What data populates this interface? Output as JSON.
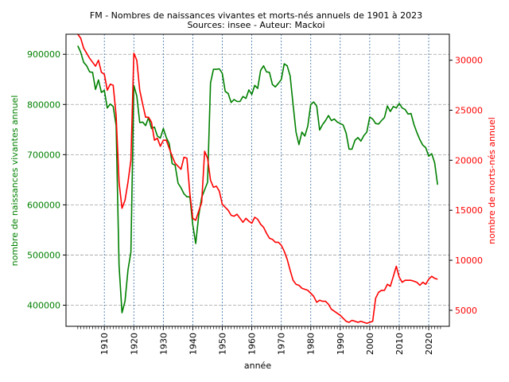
{
  "chart_data": {
    "type": "line",
    "title": "FM - Nombres de naissances vivantes et morts-nés annuels  de 1901 à 2023",
    "subtitle": "Sources: insee - Auteur: Mackoi",
    "xlabel": "année",
    "ylabel_left": "nombre de naissances vivantes annuel",
    "ylabel_right": "nombre de morts-nés annuel",
    "xlim": [
      1897,
      2027
    ],
    "ylim_left": [
      358000,
      940000
    ],
    "ylim_right": [
      3400,
      32600
    ],
    "x_ticks": [
      1910,
      1920,
      1930,
      1940,
      1950,
      1960,
      1970,
      1980,
      1990,
      2000,
      2010,
      2020
    ],
    "x_tick_labels": [
      "1910",
      "1920",
      "1930",
      "1940",
      "1950",
      "1960",
      "1970",
      "1980",
      "1990",
      "2000",
      "2010",
      "2020"
    ],
    "y_ticks_left": [
      400000,
      500000,
      600000,
      700000,
      800000,
      900000
    ],
    "y_tick_labels_left": [
      "400000",
      "500000",
      "600000",
      "700000",
      "800000",
      "900000"
    ],
    "y_ticks_right": [
      5000,
      10000,
      15000,
      20000,
      25000,
      30000
    ],
    "y_tick_labels_right": [
      "5000",
      "10000",
      "15000",
      "20000",
      "25000",
      "30000"
    ],
    "grid": {
      "horizontal": true,
      "vertical": true
    },
    "colors": {
      "left_series": "#008000",
      "right_series": "#ff0000",
      "hgrid": "#a0a0a0",
      "vgrid": "#3a6ea5",
      "left_axis_labels": "#008000",
      "right_axis_labels": "#ff0000"
    },
    "series": [
      {
        "axis": "left",
        "x": [
          1901,
          1902,
          1903,
          1904,
          1905,
          1906,
          1907,
          1908,
          1909,
          1910,
          1911,
          1912,
          1913,
          1914,
          1915,
          1916,
          1917,
          1918,
          1919,
          1920,
          1921,
          1922,
          1923,
          1924,
          1925,
          1926,
          1927,
          1928,
          1929,
          1930,
          1931,
          1932,
          1933,
          1934,
          1935,
          1936,
          1937,
          1938,
          1939,
          1940,
          1941,
          1942,
          1943,
          1944,
          1945,
          1946,
          1947,
          1948,
          1949,
          1950,
          1951,
          1952,
          1953,
          1954,
          1955,
          1956,
          1957,
          1958,
          1959,
          1960,
          1961,
          1962,
          1963,
          1964,
          1965,
          1966,
          1967,
          1968,
          1969,
          1970,
          1971,
          1972,
          1973,
          1974,
          1975,
          1976,
          1977,
          1978,
          1979,
          1980,
          1981,
          1982,
          1983,
          1984,
          1985,
          1986,
          1987,
          1988,
          1989,
          1990,
          1991,
          1992,
          1993,
          1994,
          1995,
          1996,
          1997,
          1998,
          1999,
          2000,
          2001,
          2002,
          2003,
          2004,
          2005,
          2006,
          2007,
          2008,
          2009,
          2010,
          2011,
          2012,
          2013,
          2014,
          2015,
          2016,
          2017,
          2018,
          2019,
          2020,
          2021,
          2022,
          2023
        ],
        "values": [
          917000,
          904000,
          884000,
          877000,
          865000,
          864000,
          830000,
          849000,
          824000,
          828000,
          793000,
          801000,
          796000,
          758000,
          479000,
          385000,
          408000,
          470000,
          506000,
          838000,
          817000,
          764000,
          765000,
          758000,
          774000,
          752000,
          755000,
          737000,
          733000,
          752000,
          734000,
          722000,
          682000,
          679000,
          643000,
          634000,
          622000,
          616000,
          616000,
          560000,
          523000,
          578000,
          615000,
          630000,
          645000,
          843000,
          870000,
          870000,
          871000,
          862000,
          826000,
          822000,
          804000,
          810000,
          806000,
          806000,
          816000,
          812000,
          829000,
          820000,
          838000,
          832000,
          868000,
          877000,
          865000,
          864000,
          840000,
          835000,
          842000,
          850000,
          881000,
          877000,
          857000,
          800000,
          745000,
          720000,
          745000,
          737000,
          757000,
          800000,
          805000,
          797000,
          749000,
          760000,
          768000,
          778000,
          768000,
          771000,
          765000,
          762000,
          759000,
          743000,
          711000,
          711000,
          729000,
          734000,
          727000,
          738000,
          745000,
          775000,
          771000,
          762000,
          761000,
          768000,
          774000,
          797000,
          786000,
          796000,
          793000,
          802000,
          793000,
          790000,
          781000,
          782000,
          760000,
          744000,
          730000,
          719000,
          714000,
          697000,
          702000,
          684000,
          640000
        ]
      },
      {
        "axis": "right",
        "x": [
          1901,
          1902,
          1903,
          1904,
          1905,
          1906,
          1907,
          1908,
          1909,
          1910,
          1911,
          1912,
          1913,
          1914,
          1915,
          1916,
          1917,
          1918,
          1919,
          1920,
          1921,
          1922,
          1923,
          1924,
          1925,
          1926,
          1927,
          1928,
          1929,
          1930,
          1931,
          1932,
          1933,
          1934,
          1935,
          1936,
          1937,
          1938,
          1939,
          1940,
          1941,
          1942,
          1943,
          1944,
          1945,
          1946,
          1947,
          1948,
          1949,
          1950,
          1951,
          1952,
          1953,
          1954,
          1955,
          1956,
          1957,
          1958,
          1959,
          1960,
          1961,
          1962,
          1963,
          1964,
          1965,
          1966,
          1967,
          1968,
          1969,
          1970,
          1971,
          1972,
          1973,
          1974,
          1975,
          1976,
          1977,
          1978,
          1979,
          1980,
          1981,
          1982,
          1983,
          1984,
          1985,
          1986,
          1987,
          1988,
          1989,
          1990,
          1991,
          1992,
          1993,
          1994,
          1995,
          1996,
          1997,
          1998,
          1999,
          2000,
          2001,
          2002,
          2003,
          2004,
          2005,
          2006,
          2007,
          2008,
          2009,
          2010,
          2011,
          2012,
          2013,
          2014,
          2015,
          2016,
          2017,
          2018,
          2019,
          2020,
          2021,
          2022,
          2023
        ],
        "values": [
          32600,
          32200,
          31200,
          30700,
          30200,
          29800,
          29400,
          30000,
          28800,
          28600,
          27000,
          27600,
          27500,
          24500,
          17800,
          15200,
          16000,
          17800,
          20000,
          30700,
          30000,
          27000,
          25600,
          24300,
          24300,
          23800,
          22000,
          22200,
          21400,
          22000,
          22000,
          21200,
          20400,
          19700,
          19400,
          19100,
          20300,
          20200,
          16700,
          14200,
          14000,
          14900,
          15800,
          20900,
          20200,
          18000,
          17300,
          17400,
          16900,
          15600,
          15300,
          15000,
          14500,
          14400,
          14600,
          14200,
          13800,
          14200,
          13900,
          13700,
          14300,
          14100,
          13600,
          13300,
          12700,
          12200,
          12100,
          11800,
          11800,
          11500,
          10900,
          10100,
          9000,
          8000,
          7600,
          7500,
          7200,
          7100,
          7000,
          6700,
          6400,
          5800,
          6000,
          5900,
          5900,
          5600,
          5100,
          4900,
          4700,
          4500,
          4200,
          3900,
          3800,
          4000,
          3900,
          3800,
          3900,
          3800,
          3700,
          3800,
          3900,
          6200,
          6800,
          7000,
          7000,
          7600,
          7400,
          8400,
          9400,
          8300,
          7800,
          8000,
          8000,
          8000,
          7900,
          7800,
          7500,
          7800,
          7600,
          8100,
          8400,
          8200,
          8100
        ]
      }
    ]
  }
}
